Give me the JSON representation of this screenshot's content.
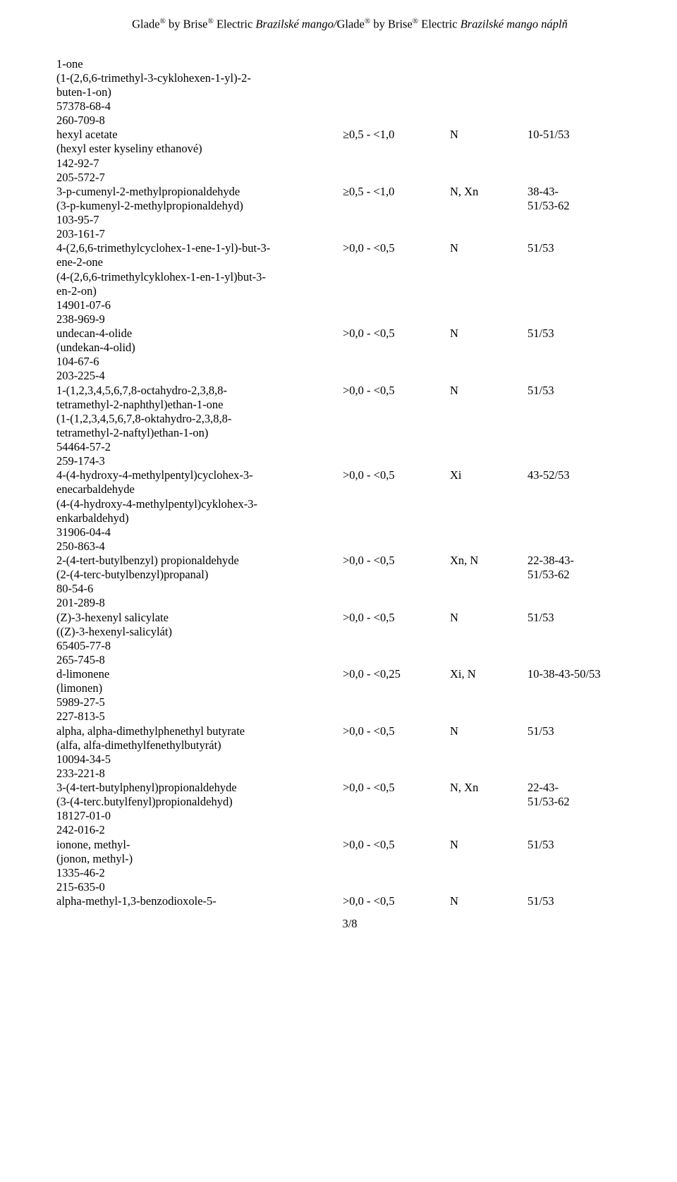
{
  "header": {
    "prefix1": "Glade",
    "reg": "®",
    "by": " by Brise",
    "electric": " Electric ",
    "product": "Brazilské mango",
    "sep": "/",
    "suffix": " náplň"
  },
  "rows": [
    {
      "c1": "1-one"
    },
    {
      "c1": "(1-(2,6,6-trimethyl-3-cyklohexen-1-yl)-2-"
    },
    {
      "c1": "buten-1-on)"
    },
    {
      "c1": "57378-68-4"
    },
    {
      "c1": "260-709-8"
    },
    {
      "c1": "hexyl acetate",
      "c2": "≥0,5 - <1,0",
      "c3": "N",
      "c4": "10-51/53"
    },
    {
      "c1": "(hexyl ester kyseliny ethanové)"
    },
    {
      "c1": "142-92-7"
    },
    {
      "c1": "205-572-7"
    },
    {
      "c1": "3-p-cumenyl-2-methylpropionaldehyde",
      "c2": "≥0,5 - <1,0",
      "c3": "N, Xn",
      "c4": "38-43-"
    },
    {
      "c1": "(3-p-kumenyl-2-methylpropionaldehyd)",
      "c4": "51/53-62"
    },
    {
      "c1": "103-95-7"
    },
    {
      "c1": "203-161-7"
    },
    {
      "c1": "4-(2,6,6-trimethylcyclohex-1-ene-1-yl)-but-3-",
      "c2": ">0,0 - <0,5",
      "c3": "N",
      "c4": "51/53"
    },
    {
      "c1": "ene-2-one"
    },
    {
      "c1": "(4-(2,6,6-trimethylcyklohex-1-en-1-yl)but-3-"
    },
    {
      "c1": "en-2-on)"
    },
    {
      "c1": "14901-07-6"
    },
    {
      "c1": "238-969-9"
    },
    {
      "c1": "undecan-4-olide",
      "c2": ">0,0 - <0,5",
      "c3": "N",
      "c4": "51/53"
    },
    {
      "c1": "(undekan-4-olid)"
    },
    {
      "c1": "104-67-6"
    },
    {
      "c1": "203-225-4"
    },
    {
      "c1": "1-(1,2,3,4,5,6,7,8-octahydro-2,3,8,8-",
      "c2": ">0,0 - <0,5",
      "c3": "N",
      "c4": "51/53"
    },
    {
      "c1": "tetramethyl-2-naphthyl)ethan-1-one"
    },
    {
      "c1": "(1-(1,2,3,4,5,6,7,8-oktahydro-2,3,8,8-"
    },
    {
      "c1": "tetramethyl-2-naftyl)ethan-1-on)"
    },
    {
      "c1": "54464-57-2"
    },
    {
      "c1": "259-174-3"
    },
    {
      "c1": "4-(4-hydroxy-4-methylpentyl)cyclohex-3-",
      "c2": ">0,0 - <0,5",
      "c3": "Xi",
      "c4": "43-52/53"
    },
    {
      "c1": "enecarbaldehyde"
    },
    {
      "c1": "(4-(4-hydroxy-4-methylpentyl)cyklohex-3-"
    },
    {
      "c1": "enkarbaldehyd)"
    },
    {
      "c1": "31906-04-4"
    },
    {
      "c1": "250-863-4"
    },
    {
      "c1": "2-(4-tert-butylbenzyl) propionaldehyde",
      "c2": ">0,0 - <0,5",
      "c3": "Xn, N",
      "c4": "22-38-43-"
    },
    {
      "c1": "(2-(4-terc-butylbenzyl)propanal)",
      "c4": "51/53-62"
    },
    {
      "c1": "80-54-6"
    },
    {
      "c1": "201-289-8"
    },
    {
      "c1": "(Z)-3-hexenyl salicylate",
      "c2": ">0,0 - <0,5",
      "c3": "N",
      "c4": "51/53"
    },
    {
      "c1": "((Z)-3-hexenyl-salicylát)"
    },
    {
      "c1": "65405-77-8"
    },
    {
      "c1": "265-745-8"
    },
    {
      "c1": "d-limonene",
      "c2": ">0,0 - <0,25",
      "c3": "Xi, N",
      "c4": "10-38-43-50/53"
    },
    {
      "c1": "(limonen)"
    },
    {
      "c1": "5989-27-5"
    },
    {
      "c1": "227-813-5"
    },
    {
      "c1": "alpha, alpha-dimethylphenethyl butyrate",
      "c2": ">0,0 - <0,5",
      "c3": "N",
      "c4": "51/53"
    },
    {
      "c1": "(alfa, alfa-dimethylfenethylbutyrát)"
    },
    {
      "c1": "10094-34-5"
    },
    {
      "c1": "233-221-8"
    },
    {
      "c1": "3-(4-tert-butylphenyl)propionaldehyde",
      "c2": ">0,0 - <0,5",
      "c3": "N, Xn",
      "c4": "22-43-"
    },
    {
      "c1": "(3-(4-terc.butylfenyl)propionaldehyd)",
      "c4": "51/53-62"
    },
    {
      "c1": "18127-01-0"
    },
    {
      "c1": "242-016-2"
    },
    {
      "c1": "ionone, methyl-",
      "c2": ">0,0 - <0,5",
      "c3": "N",
      "c4": "51/53"
    },
    {
      "c1": "(jonon, methyl-)"
    },
    {
      "c1": "1335-46-2"
    },
    {
      "c1": "215-635-0"
    },
    {
      "c1": "alpha-methyl-1,3-benzodioxole-5-",
      "c2": ">0,0 - <0,5",
      "c3": "N",
      "c4": "51/53"
    }
  ],
  "pageNum": "3/8"
}
